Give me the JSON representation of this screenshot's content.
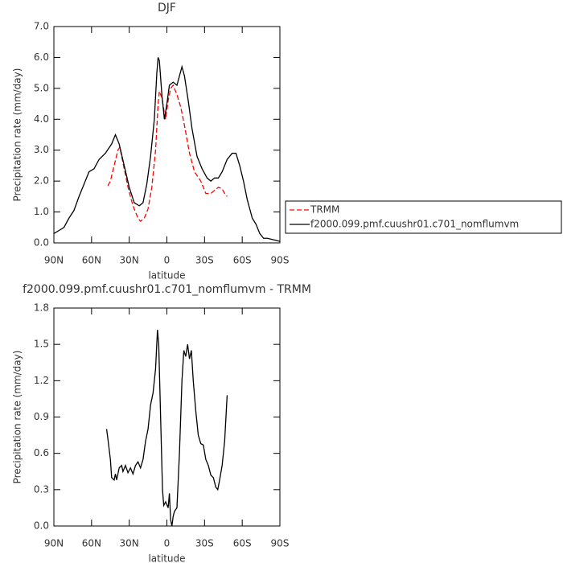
{
  "chart_data": [
    {
      "type": "line",
      "title": "DJF",
      "xlabel": "latitude",
      "ylabel": "Precipitation rate (mm/day)",
      "xlim": [
        90,
        -90
      ],
      "xticks": [
        {
          "value": 90,
          "label": "90N"
        },
        {
          "value": 60,
          "label": "60N"
        },
        {
          "value": 30,
          "label": "30N"
        },
        0,
        {
          "value": -30,
          "label": "30S"
        },
        {
          "value": -60,
          "label": "60S"
        },
        {
          "value": -90,
          "label": "90S"
        }
      ],
      "ylim": [
        0,
        7
      ],
      "yticks": [
        {
          "value": 0,
          "label": "0.0"
        },
        {
          "value": 1,
          "label": "1.0"
        },
        {
          "value": 2,
          "label": "2.0"
        },
        {
          "value": 3,
          "label": "3.0"
        },
        {
          "value": 4,
          "label": "4.0"
        },
        {
          "value": 5,
          "label": "5.0"
        },
        {
          "value": 6,
          "label": "6.0"
        },
        {
          "value": 7,
          "label": "7.0"
        }
      ],
      "legend": "right",
      "series": [
        {
          "name": "TRMM",
          "color": "#ff0000",
          "dashed": true,
          "x": [
            47,
            45,
            42,
            39,
            37.5,
            35,
            31,
            27,
            23,
            21,
            18,
            15,
            12,
            9,
            7,
            6,
            4,
            2,
            1,
            -1,
            -3,
            -5,
            -8,
            -11,
            -14,
            -18,
            -22,
            -27,
            -31,
            -35,
            -38,
            -41,
            -44,
            -46,
            -48
          ],
          "values": [
            1.85,
            2.0,
            2.5,
            3.0,
            3.1,
            2.6,
            1.8,
            1.2,
            0.8,
            0.7,
            0.8,
            1.1,
            1.8,
            3.0,
            4.5,
            4.9,
            4.7,
            4.2,
            4.0,
            4.6,
            5.0,
            5.1,
            4.8,
            4.4,
            3.8,
            2.9,
            2.3,
            2.0,
            1.6,
            1.6,
            1.7,
            1.8,
            1.75,
            1.6,
            1.5
          ]
        },
        {
          "name": "f2000.099.pmf.cuushr01.c701_nomflumvm",
          "color": "#000000",
          "dashed": false,
          "x": [
            90,
            86,
            82,
            78,
            74,
            70,
            66,
            62,
            58,
            54,
            49,
            44,
            41,
            38,
            34,
            30,
            26,
            22,
            19,
            16,
            13,
            10,
            8,
            7,
            6,
            4,
            2,
            0,
            -2,
            -5,
            -8,
            -10,
            -12,
            -14,
            -17,
            -20,
            -24,
            -28,
            -32,
            -35,
            -38,
            -41,
            -44,
            -48,
            -52,
            -55,
            -58,
            -61,
            -64,
            -68,
            -71,
            -74,
            -77,
            -80,
            -85,
            -90
          ],
          "values": [
            0.3,
            0.4,
            0.5,
            0.8,
            1.05,
            1.5,
            1.9,
            2.3,
            2.4,
            2.7,
            2.9,
            3.2,
            3.5,
            3.2,
            2.5,
            1.8,
            1.3,
            1.2,
            1.3,
            1.9,
            2.8,
            4.0,
            5.5,
            6.0,
            5.9,
            4.8,
            4.0,
            4.5,
            5.1,
            5.2,
            5.1,
            5.4,
            5.7,
            5.4,
            4.6,
            3.7,
            2.8,
            2.4,
            2.1,
            2.0,
            2.1,
            2.1,
            2.3,
            2.7,
            2.9,
            2.9,
            2.5,
            2.0,
            1.4,
            0.8,
            0.6,
            0.3,
            0.15,
            0.15,
            0.1,
            0.05
          ]
        }
      ]
    },
    {
      "type": "line",
      "title": "f2000.099.pmf.cuushr01.c701_nomflumvm - TRMM",
      "xlabel": "latitude",
      "ylabel": "Precipitation rate (mm/day)",
      "xlim": [
        90,
        -90
      ],
      "xticks": [
        {
          "value": 90,
          "label": "90N"
        },
        {
          "value": 60,
          "label": "60N"
        },
        {
          "value": 30,
          "label": "30N"
        },
        0,
        {
          "value": -30,
          "label": "30S"
        },
        {
          "value": -60,
          "label": "60S"
        },
        {
          "value": -90,
          "label": "90S"
        }
      ],
      "ylim": [
        0,
        1.8
      ],
      "yticks": [
        {
          "value": 0,
          "label": "0.0"
        },
        0.3,
        0.6,
        0.9,
        1.2,
        1.5,
        1.8
      ],
      "series": [
        {
          "color": "#000000",
          "dashed": false,
          "x": [
            48,
            47,
            45,
            44,
            42,
            41,
            40,
            38,
            36,
            35,
            33,
            31,
            29,
            27,
            25,
            23,
            21,
            19,
            17,
            15,
            13,
            11,
            9,
            7.5,
            6.5,
            5,
            3.5,
            2.5,
            1,
            -1,
            -2,
            -3,
            -4,
            -5,
            -6,
            -8,
            -10,
            -12,
            -13.5,
            -15,
            -16.5,
            -18,
            -19.5,
            -21,
            -23,
            -25,
            -27,
            -29,
            -31,
            -33,
            -35,
            -37,
            -39,
            -40.5,
            -42,
            -44,
            -46,
            -48
          ],
          "values": [
            0.8,
            0.72,
            0.55,
            0.4,
            0.38,
            0.43,
            0.38,
            0.48,
            0.5,
            0.45,
            0.5,
            0.44,
            0.48,
            0.43,
            0.5,
            0.53,
            0.48,
            0.55,
            0.7,
            0.8,
            1.0,
            1.1,
            1.3,
            1.62,
            1.5,
            0.9,
            0.3,
            0.17,
            0.2,
            0.15,
            0.27,
            0.05,
            0.0,
            0.08,
            0.12,
            0.15,
            0.6,
            1.2,
            1.45,
            1.4,
            1.5,
            1.38,
            1.45,
            1.2,
            0.95,
            0.75,
            0.68,
            0.67,
            0.55,
            0.5,
            0.42,
            0.4,
            0.32,
            0.3,
            0.38,
            0.5,
            0.7,
            1.08
          ]
        }
      ]
    }
  ]
}
